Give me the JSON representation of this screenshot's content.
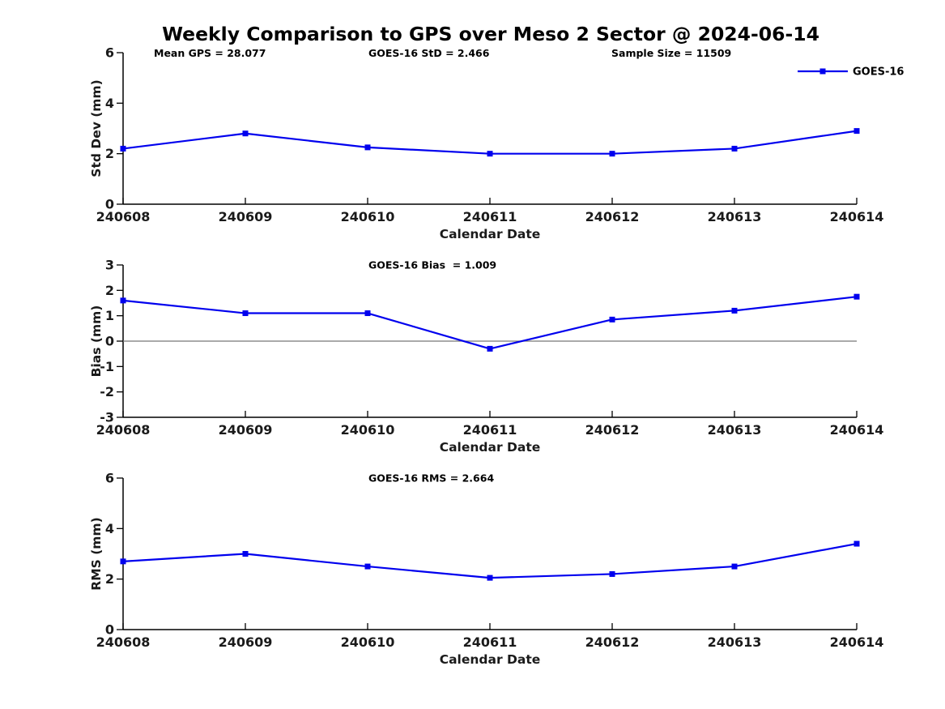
{
  "title": "Weekly Comparison to GPS over Meso 2 Sector @ 2024-06-14",
  "legend": {
    "label": "GOES-16",
    "position": "top-right"
  },
  "colors": {
    "line": "#0000EE",
    "marker": "#0000EE",
    "zero_line": "#777777",
    "axis": "#000000"
  },
  "chart_data": [
    {
      "type": "line",
      "annotations": [
        "Mean GPS = 28.077",
        "GOES-16 StD = 2.466",
        "Sample Size = 11509"
      ],
      "x": [
        "240608",
        "240609",
        "240610",
        "240611",
        "240612",
        "240613",
        "240614"
      ],
      "series": [
        {
          "name": "GOES-16",
          "values": [
            2.2,
            2.8,
            2.25,
            2.0,
            2.0,
            2.2,
            2.9
          ]
        }
      ],
      "xlabel": "Calendar Date",
      "ylabel": "Std Dev (mm)",
      "ylim": [
        0,
        6
      ],
      "yticks": [
        0,
        2,
        4,
        6
      ],
      "grid": false,
      "zero_line": false,
      "legend_visible": true
    },
    {
      "type": "line",
      "annotations": [
        "GOES-16 Bias  = 1.009"
      ],
      "x": [
        "240608",
        "240609",
        "240610",
        "240611",
        "240612",
        "240613",
        "240614"
      ],
      "series": [
        {
          "name": "GOES-16",
          "values": [
            1.6,
            1.1,
            1.1,
            -0.3,
            0.85,
            1.2,
            1.75
          ]
        }
      ],
      "xlabel": "Calendar Date",
      "ylabel": "Bias (mm)",
      "ylim": [
        -3,
        3
      ],
      "yticks": [
        -3,
        -2,
        -1,
        0,
        1,
        2,
        3
      ],
      "grid": false,
      "zero_line": true,
      "legend_visible": false
    },
    {
      "type": "line",
      "annotations": [
        "GOES-16 RMS = 2.664"
      ],
      "x": [
        "240608",
        "240609",
        "240610",
        "240611",
        "240612",
        "240613",
        "240614"
      ],
      "series": [
        {
          "name": "GOES-16",
          "values": [
            2.7,
            3.0,
            2.5,
            2.05,
            2.2,
            2.5,
            3.4
          ]
        }
      ],
      "xlabel": "Calendar Date",
      "ylabel": "RMS (mm)",
      "ylim": [
        0,
        6
      ],
      "yticks": [
        0,
        2,
        4,
        6
      ],
      "grid": false,
      "zero_line": false,
      "legend_visible": false
    }
  ]
}
